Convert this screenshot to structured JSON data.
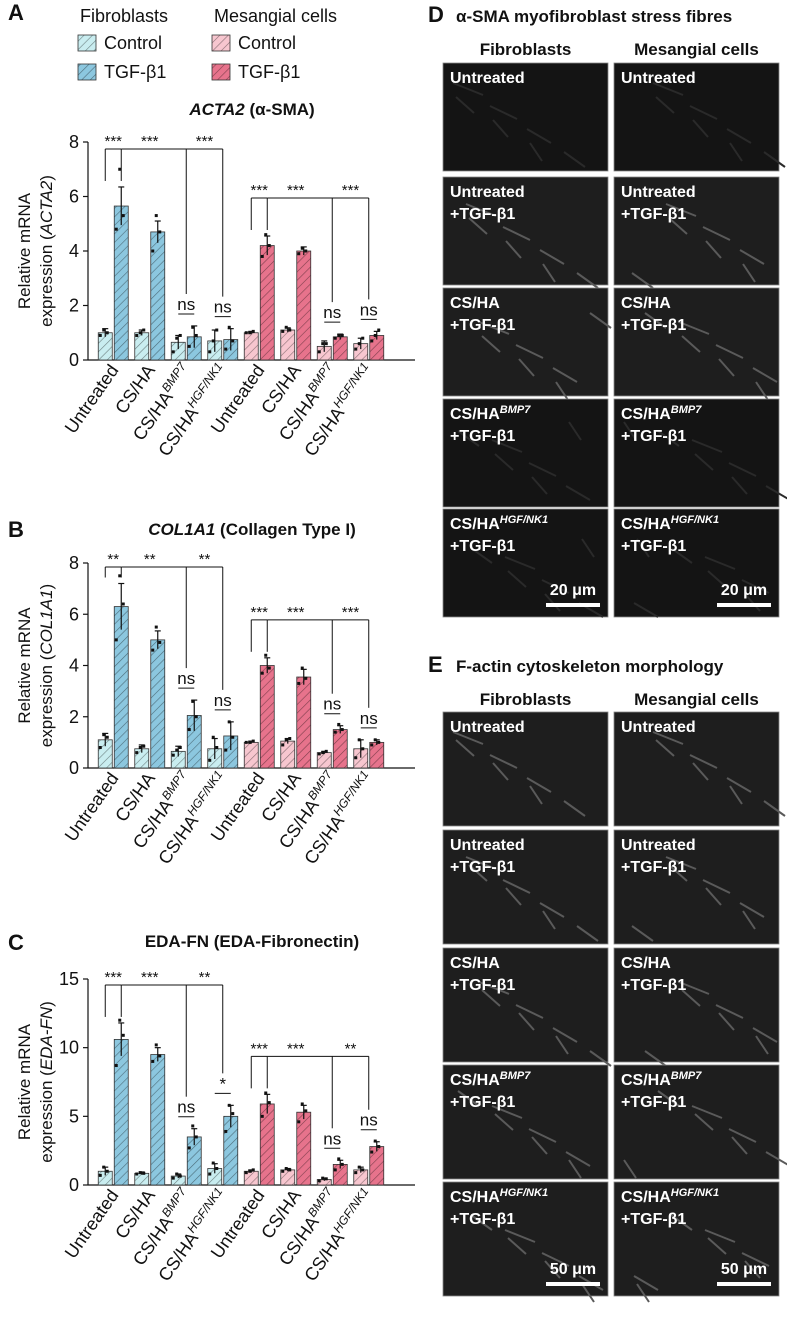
{
  "legend": {
    "groups": [
      "Fibroblasts",
      "Mesangial cells"
    ]
  },
  "chart_data": [
    {
      "type": "bar",
      "panel_label": "A",
      "title_parts": [
        {
          "text": "ACTA2",
          "italic": true
        },
        {
          "text": " (α-SMA)"
        }
      ],
      "ylabel": "Relative mRNA",
      "ylabel_parts": [
        {
          "text": "expression ("
        },
        {
          "text": "ACTA2",
          "italic": true
        },
        {
          "text": ")"
        }
      ],
      "categories": [
        {
          "text": "Untreated"
        },
        {
          "text": "CS/HA"
        },
        {
          "text": "CS/HA",
          "sup": "BMP7"
        },
        {
          "text": "CS/HA",
          "sup": "HGF/NK1"
        },
        {
          "text": "Untreated"
        },
        {
          "text": "CS/HA"
        },
        {
          "text": "CS/HA",
          "sup": "BMP7"
        },
        {
          "text": "CS/HA",
          "sup": "HGF/NK1"
        }
      ],
      "hatch": true,
      "series": [
        {
          "name": "Control",
          "color": "#c9edf0",
          "values": [
            1.0,
            1.0,
            0.65,
            0.7,
            null,
            null,
            null,
            null
          ],
          "errors": [
            0.15,
            0.1,
            0.25,
            0.4,
            null,
            null,
            null,
            null
          ],
          "points": [
            [
              0.9,
              1.1,
              1.0
            ],
            [
              0.9,
              1.0,
              1.1
            ],
            [
              0.3,
              0.8,
              0.9
            ],
            [
              0.3,
              0.7,
              1.1
            ],
            null,
            null,
            null,
            null
          ]
        },
        {
          "name": "TGF-β1",
          "color": "#8cc7df",
          "values": [
            5.65,
            4.7,
            0.85,
            0.75,
            null,
            null,
            null,
            null
          ],
          "errors": [
            0.7,
            0.4,
            0.4,
            0.4,
            null,
            null,
            null,
            null
          ],
          "points": [
            [
              4.8,
              7.0,
              5.3
            ],
            [
              4.0,
              5.3,
              4.7
            ],
            [
              0.5,
              1.2,
              0.9
            ],
            [
              0.4,
              1.2,
              0.7
            ],
            null,
            null,
            null,
            null
          ]
        },
        {
          "name": "Control",
          "color": "#f7c6cf",
          "values": [
            null,
            null,
            null,
            null,
            1.0,
            1.1,
            0.5,
            0.6
          ],
          "errors": [
            null,
            null,
            null,
            null,
            0.05,
            0.08,
            0.2,
            0.2
          ],
          "points": [
            null,
            null,
            null,
            null,
            [
              1.0,
              1.0,
              1.05
            ],
            [
              1.05,
              1.2,
              1.1
            ],
            [
              0.3,
              0.6,
              0.6
            ],
            [
              0.4,
              0.6,
              0.8
            ]
          ]
        },
        {
          "name": "TGF-β1",
          "color": "#e7738c",
          "values": [
            null,
            null,
            null,
            null,
            4.2,
            4.0,
            0.85,
            0.9
          ],
          "errors": [
            null,
            null,
            null,
            null,
            0.35,
            0.15,
            0.1,
            0.15
          ],
          "points": [
            null,
            null,
            null,
            null,
            [
              3.8,
              4.6,
              4.2
            ],
            [
              3.9,
              4.1,
              4.0
            ],
            [
              0.8,
              0.9,
              0.9
            ],
            [
              0.7,
              0.9,
              1.1
            ]
          ]
        }
      ],
      "ylim": [
        0,
        8
      ],
      "yticks": [
        0,
        2,
        4,
        6,
        8
      ],
      "annotations": [
        "***",
        "***",
        "***",
        "ns",
        "ns",
        "***",
        "***",
        "***",
        "ns",
        "ns"
      ]
    },
    {
      "type": "bar",
      "panel_label": "B",
      "title_parts": [
        {
          "text": "COL1A1",
          "italic": true
        },
        {
          "text": " (Collagen Type I)"
        }
      ],
      "ylabel": "Relative mRNA",
      "ylabel_parts": [
        {
          "text": "expression ("
        },
        {
          "text": "COL1A1",
          "italic": true
        },
        {
          "text": ")"
        }
      ],
      "categories": [
        {
          "text": "Untreated"
        },
        {
          "text": "CS/HA"
        },
        {
          "text": "CS/HA",
          "sup": "BMP7"
        },
        {
          "text": "CS/HA",
          "sup": "HGF/NK1"
        },
        {
          "text": "Untreated"
        },
        {
          "text": "CS/HA"
        },
        {
          "text": "CS/HA",
          "sup": "BMP7"
        },
        {
          "text": "CS/HA",
          "sup": "HGF/NK1"
        }
      ],
      "hatch": true,
      "series": [
        {
          "name": "Control",
          "color": "#c9edf0",
          "values": [
            1.1,
            0.75,
            0.65,
            0.75,
            null,
            null,
            null,
            null
          ],
          "errors": [
            0.25,
            0.15,
            0.2,
            0.4,
            null,
            null,
            null,
            null
          ],
          "points": [
            [
              0.8,
              1.3,
              1.2
            ],
            [
              0.6,
              0.8,
              0.85
            ],
            [
              0.5,
              0.7,
              0.8
            ],
            [
              0.3,
              1.2,
              0.8
            ],
            null,
            null,
            null,
            null
          ]
        },
        {
          "name": "TGF-β1",
          "color": "#8cc7df",
          "values": [
            6.3,
            5.0,
            2.05,
            1.25,
            null,
            null,
            null,
            null
          ],
          "errors": [
            0.9,
            0.35,
            0.6,
            0.55,
            null,
            null,
            null,
            null
          ],
          "points": [
            [
              5.0,
              7.5,
              6.4
            ],
            [
              4.6,
              5.5,
              4.9
            ],
            [
              1.5,
              2.6,
              2.0
            ],
            [
              0.7,
              1.8,
              1.2
            ],
            null,
            null,
            null,
            null
          ]
        },
        {
          "name": "Control",
          "color": "#f7c6cf",
          "values": [
            null,
            null,
            null,
            null,
            1.0,
            1.05,
            0.6,
            0.75
          ],
          "errors": [
            null,
            null,
            null,
            null,
            0.05,
            0.1,
            0.05,
            0.35
          ],
          "points": [
            null,
            null,
            null,
            null,
            [
              1.0,
              1.0,
              1.05
            ],
            [
              0.9,
              1.1,
              1.15
            ],
            [
              0.55,
              0.6,
              0.65
            ],
            [
              0.4,
              1.1,
              0.75
            ]
          ]
        },
        {
          "name": "TGF-β1",
          "color": "#e7738c",
          "values": [
            null,
            null,
            null,
            null,
            4.0,
            3.55,
            1.5,
            1.0
          ],
          "errors": [
            null,
            null,
            null,
            null,
            0.3,
            0.3,
            0.15,
            0.1
          ],
          "points": [
            null,
            null,
            null,
            null,
            [
              3.7,
              4.4,
              3.9
            ],
            [
              3.3,
              3.9,
              3.5
            ],
            [
              1.4,
              1.7,
              1.5
            ],
            [
              0.9,
              1.1,
              1.0
            ]
          ]
        }
      ],
      "ylim": [
        0,
        8
      ],
      "yticks": [
        0,
        2,
        4,
        6,
        8
      ],
      "annotations": [
        "**",
        "**",
        "**",
        "ns",
        "ns",
        "***",
        "***",
        "***",
        "ns",
        "ns"
      ]
    },
    {
      "type": "bar",
      "panel_label": "C",
      "title_parts": [
        {
          "text": "EDA-FN (EDA-Fibronectin)"
        }
      ],
      "ylabel": "Relative mRNA",
      "ylabel_parts": [
        {
          "text": "expression ("
        },
        {
          "text": "EDA-FN",
          "italic": true
        },
        {
          "text": ")"
        }
      ],
      "categories": [
        {
          "text": "Untreated"
        },
        {
          "text": "CS/HA"
        },
        {
          "text": "CS/HA",
          "sup": "BMP7"
        },
        {
          "text": "CS/HA",
          "sup": "HGF/NK1"
        },
        {
          "text": "Untreated"
        },
        {
          "text": "CS/HA"
        },
        {
          "text": "CS/HA",
          "sup": "BMP7"
        },
        {
          "text": "CS/HA",
          "sup": "HGF/NK1"
        }
      ],
      "hatch": true,
      "series": [
        {
          "name": "Control",
          "color": "#c9edf0",
          "values": [
            1.0,
            0.85,
            0.65,
            1.2,
            null,
            null,
            null,
            null
          ],
          "errors": [
            0.3,
            0.1,
            0.15,
            0.35,
            null,
            null,
            null,
            null
          ],
          "points": [
            [
              0.7,
              1.3,
              1.0
            ],
            [
              0.8,
              0.9,
              0.85
            ],
            [
              0.5,
              0.8,
              0.65
            ],
            [
              0.8,
              1.6,
              1.2
            ],
            null,
            null,
            null,
            null
          ]
        },
        {
          "name": "TGF-β1",
          "color": "#8cc7df",
          "values": [
            10.6,
            9.5,
            3.5,
            5.0,
            null,
            null,
            null,
            null
          ],
          "errors": [
            1.2,
            0.5,
            0.6,
            0.8,
            null,
            null,
            null,
            null
          ],
          "points": [
            [
              8.7,
              12.0,
              10.9
            ],
            [
              9.0,
              10.2,
              9.4
            ],
            [
              2.7,
              4.3,
              3.5
            ],
            [
              3.9,
              5.8,
              5.2
            ],
            null,
            null,
            null,
            null
          ]
        },
        {
          "name": "Control",
          "color": "#f7c6cf",
          "values": [
            null,
            null,
            null,
            null,
            1.0,
            1.1,
            0.4,
            1.1
          ],
          "errors": [
            null,
            null,
            null,
            null,
            0.1,
            0.1,
            0.1,
            0.2
          ],
          "points": [
            null,
            null,
            null,
            null,
            [
              0.9,
              1.0,
              1.1
            ],
            [
              1.0,
              1.2,
              1.1
            ],
            [
              0.3,
              0.5,
              0.45
            ],
            [
              0.9,
              1.3,
              1.1
            ]
          ]
        },
        {
          "name": "TGF-β1",
          "color": "#e7738c",
          "values": [
            null,
            null,
            null,
            null,
            5.9,
            5.3,
            1.5,
            2.8
          ],
          "errors": [
            null,
            null,
            null,
            null,
            0.7,
            0.5,
            0.3,
            0.35
          ],
          "points": [
            null,
            null,
            null,
            null,
            [
              5.0,
              6.7,
              6.0
            ],
            [
              4.6,
              5.9,
              5.4
            ],
            [
              1.1,
              1.9,
              1.5
            ],
            [
              2.4,
              3.2,
              2.8
            ]
          ]
        }
      ],
      "ylim": [
        0,
        15
      ],
      "yticks": [
        0,
        5,
        10,
        15
      ],
      "annotations": [
        "***",
        "***",
        "**",
        "ns",
        "*",
        "***",
        "***",
        "**",
        "ns",
        "ns"
      ]
    }
  ],
  "micrographs": [
    {
      "panel_label": "D",
      "title": "α-SMA myofibroblast stress fibres",
      "columns": [
        "Fibroblasts",
        "Mesangial cells"
      ],
      "rows": [
        {
          "text": "Untreated"
        },
        {
          "text": "Untreated",
          "line2": "+TGF-β1"
        },
        {
          "text": "CS/HA",
          "line2": "+TGF-β1"
        },
        {
          "text": "CS/HA",
          "sup": "BMP7",
          "line2": "+TGF-β1"
        },
        {
          "text": "CS/HA",
          "sup": "HGF/NK1",
          "line2": "+TGF-β1"
        }
      ],
      "scale_bar": "20 μm"
    },
    {
      "panel_label": "E",
      "title": "F-actin cytoskeleton morphology",
      "columns": [
        "Fibroblasts",
        "Mesangial cells"
      ],
      "rows": [
        {
          "text": "Untreated"
        },
        {
          "text": "Untreated",
          "line2": "+TGF-β1"
        },
        {
          "text": "CS/HA",
          "line2": "+TGF-β1"
        },
        {
          "text": "CS/HA",
          "sup": "BMP7",
          "line2": "+TGF-β1"
        },
        {
          "text": "CS/HA",
          "sup": "HGF/NK1",
          "line2": "+TGF-β1"
        }
      ],
      "scale_bar": "50 μm"
    }
  ]
}
